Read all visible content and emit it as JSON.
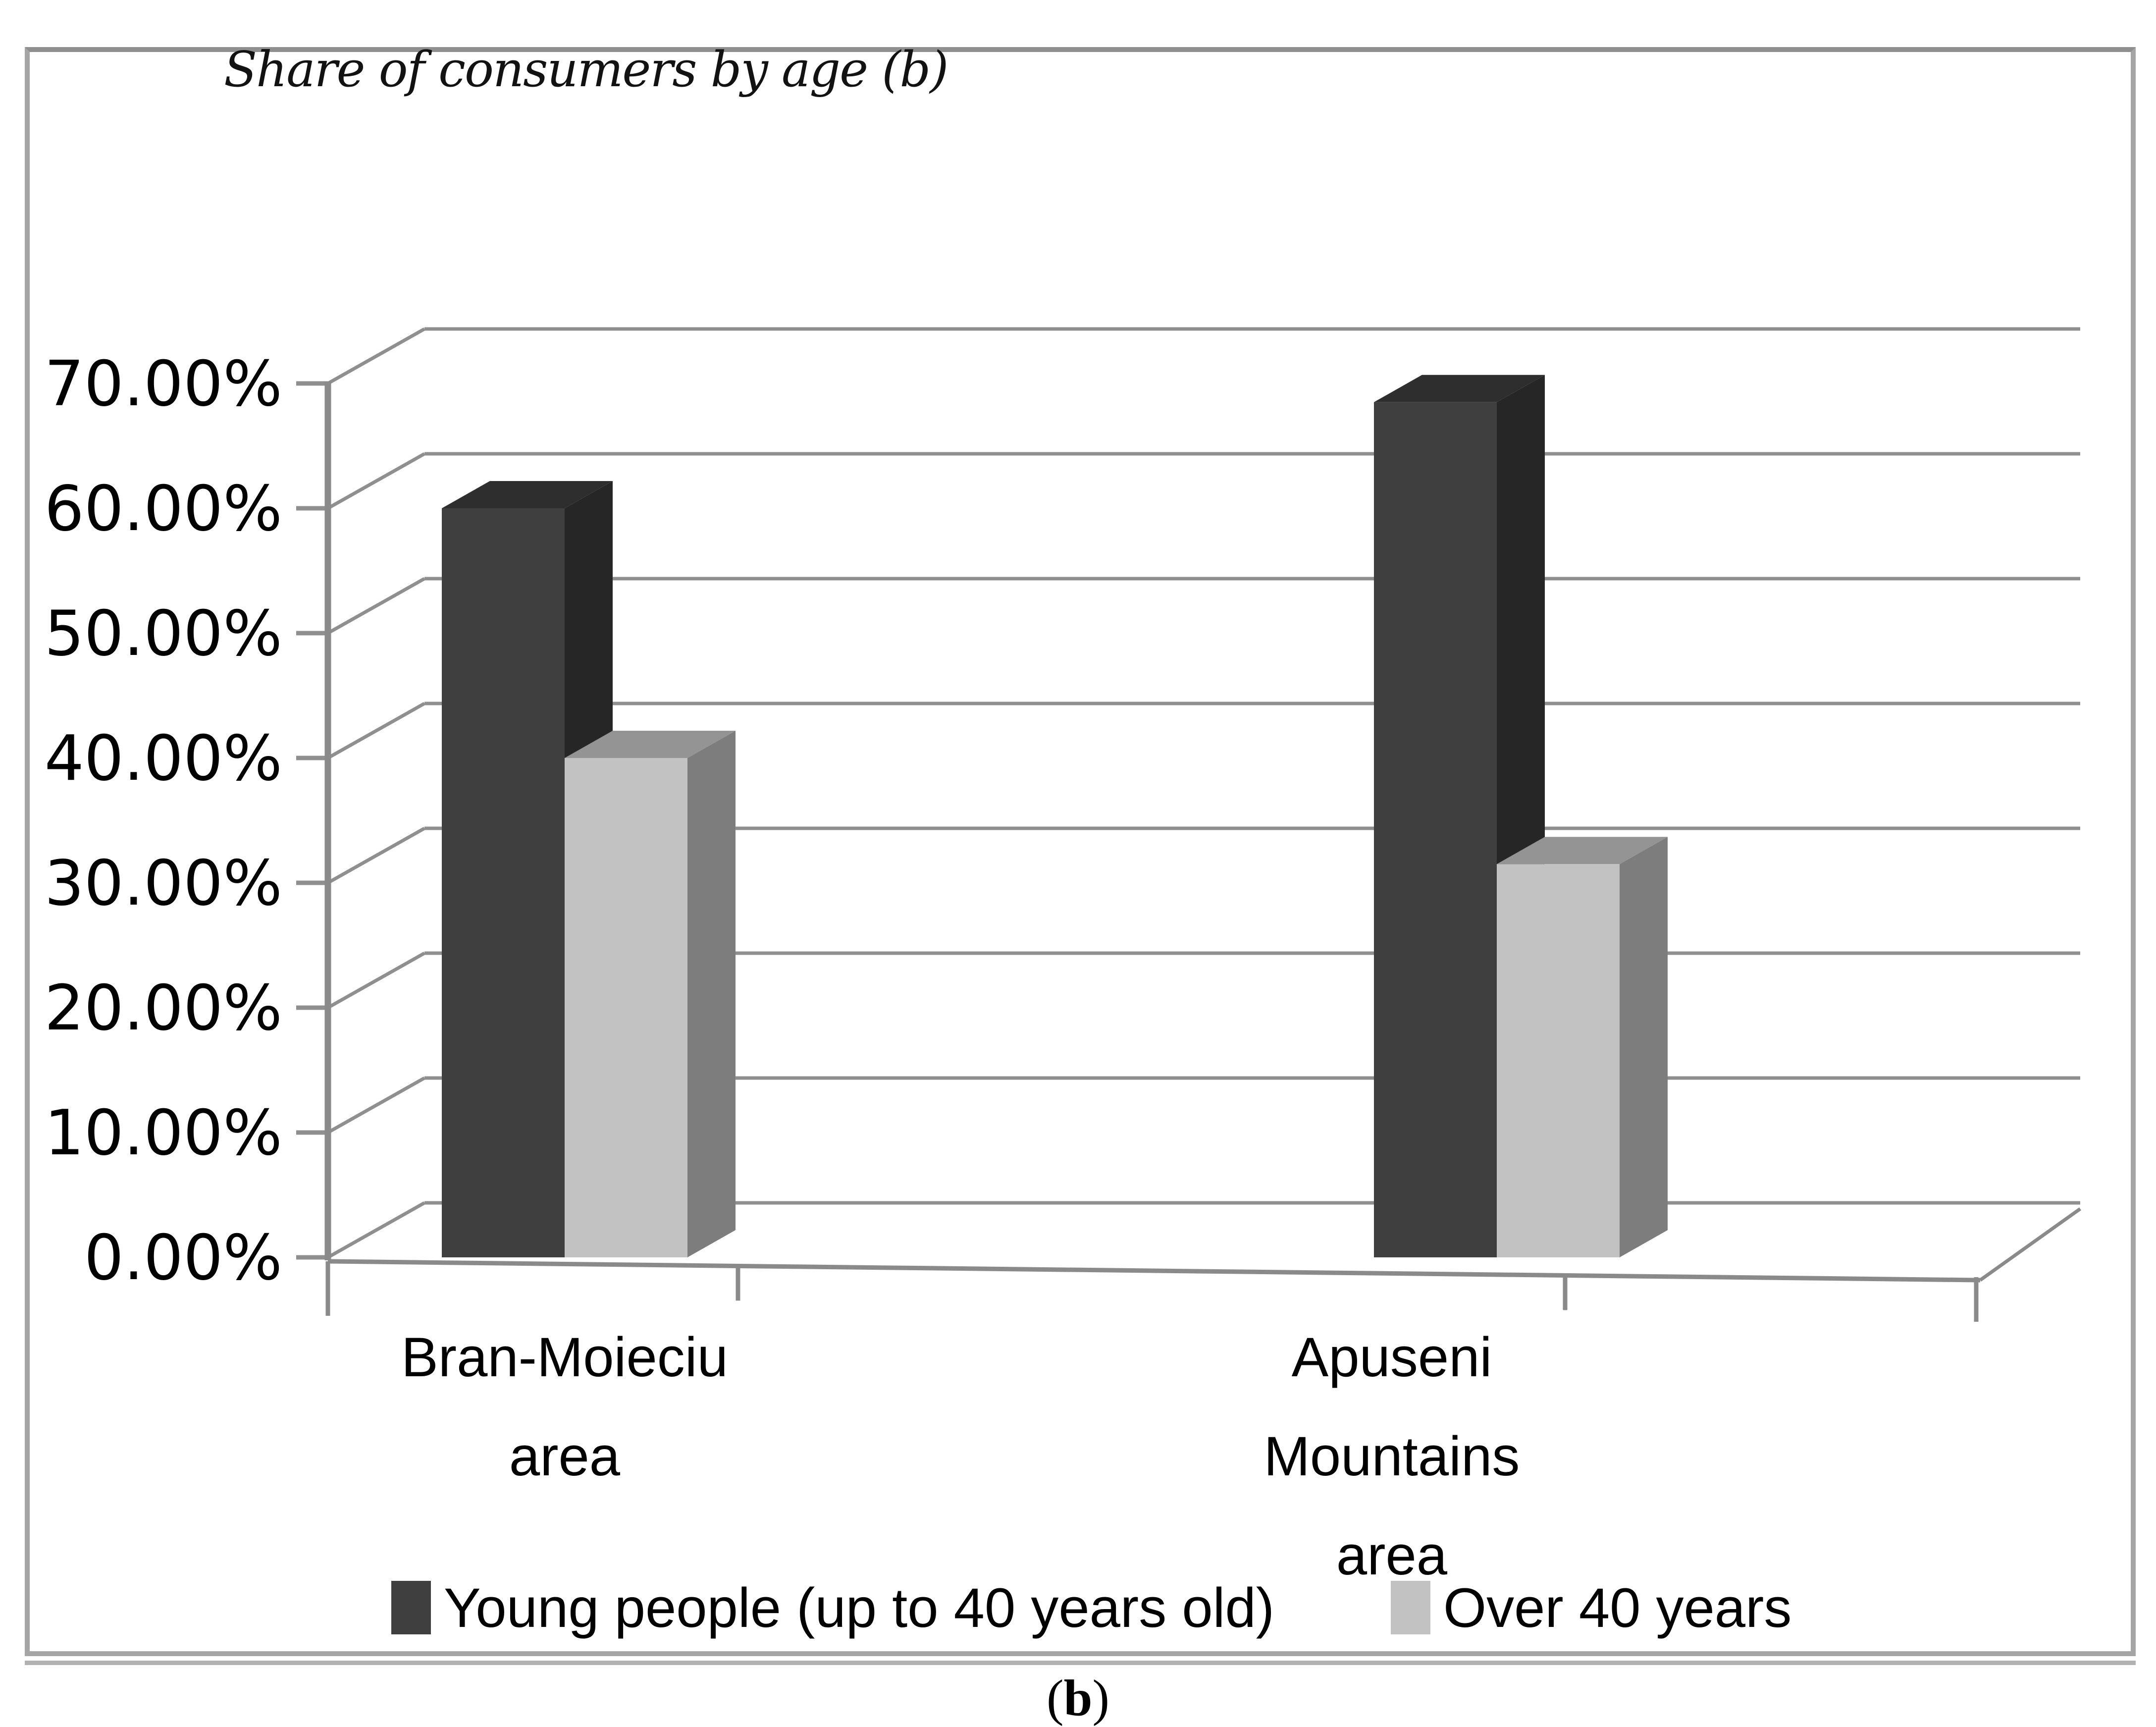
{
  "figure": {
    "title": "Share of consumers by age (b)",
    "caption": {
      "prefix": "(",
      "letter": "b",
      "suffix": ")"
    }
  },
  "chart_data": {
    "type": "bar",
    "projection": "3d-clustered-column",
    "title": "Share of consumers by age (b)",
    "categories": [
      {
        "lines": [
          "Bran-Moieciu",
          "area"
        ]
      },
      {
        "lines": [
          "Apuseni",
          "Mountains",
          "area"
        ]
      }
    ],
    "series": [
      {
        "name": "Young people (up to 40 years old)",
        "values": [
          60,
          68.5
        ],
        "color_front": "#3f3f3f",
        "color_top": "#2e2e2e",
        "color_side": "#262626"
      },
      {
        "name": "Over 40 years",
        "values": [
          40,
          31.5
        ],
        "color_front": "#c2c2c2",
        "color_top": "#949494",
        "color_side": "#7d7d7d"
      }
    ],
    "unit": "%",
    "ylim": [
      0,
      70
    ],
    "y_tick_values": [
      0,
      10,
      20,
      30,
      40,
      50,
      60,
      70
    ],
    "y_tick_labels": [
      "0.00%",
      "10.00%",
      "20.00%",
      "30.00%",
      "40.00%",
      "50.00%",
      "60.00%",
      "70.00%"
    ],
    "grid": true,
    "legend_position": "bottom",
    "colors": {
      "gridline": "#8f8f8f",
      "axis": "#8a8a8a",
      "tick_label": "#000000",
      "frame_border": "#a5a5a5",
      "background": "#ffffff"
    }
  }
}
